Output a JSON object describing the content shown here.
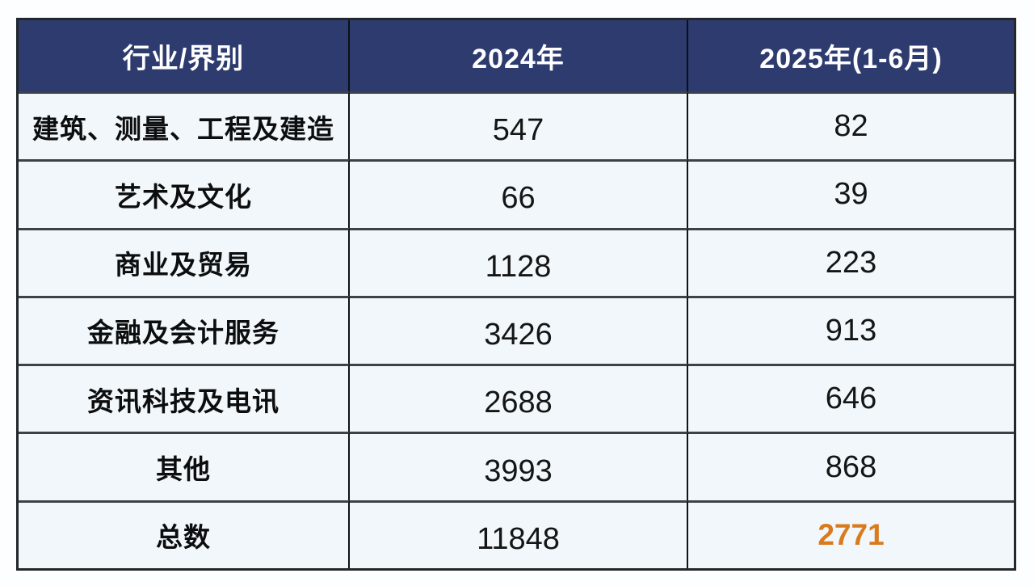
{
  "chart_data": {
    "type": "table",
    "columns": [
      "行业/界别",
      "2024年",
      "2025年(1-6月)"
    ],
    "rows": [
      [
        "建筑、测量、工程及建造",
        547,
        82
      ],
      [
        "艺术及文化",
        66,
        39
      ],
      [
        "商业及贸易",
        1128,
        223
      ],
      [
        "金融及会计服务",
        3426,
        913
      ],
      [
        "资讯科技及电讯",
        2688,
        646
      ],
      [
        "其他",
        3993,
        868
      ],
      [
        "总数",
        11848,
        2771
      ]
    ],
    "total_row_label": "总数",
    "highlighted_value": 2771,
    "layout": {
      "header_position": "top",
      "grid": "on",
      "column_count": 3,
      "data_row_count": 7
    },
    "colors": {
      "header_bg": "#2e3b6f",
      "header_text": "#ffffff",
      "row_bg": "#f1f7fa",
      "page_bg": "#fdfeff",
      "border_vertical": "#0f1318",
      "border_horizontal": "#3c4348",
      "border_outer": "#22272c",
      "body_text": "#141516",
      "total_highlight": "#d97b1d"
    }
  }
}
